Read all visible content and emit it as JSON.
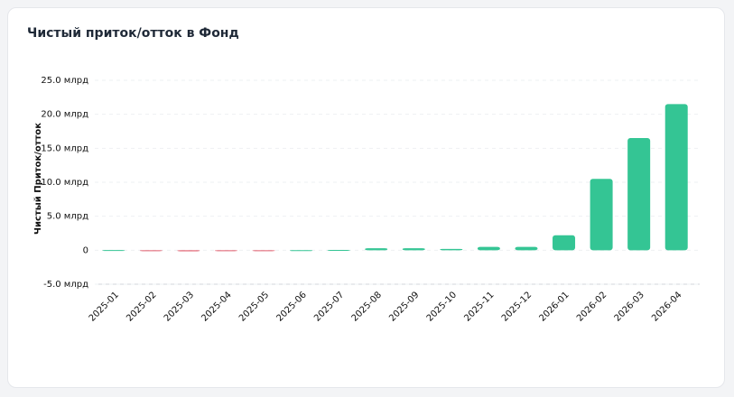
{
  "chart_data": {
    "type": "bar",
    "title": "Чистый приток/отток в Фонд",
    "y_label": "Чистый Приток/отток",
    "categories": [
      "2025-01",
      "2025-02",
      "2025-03",
      "2025-04",
      "2025-05",
      "2025-06",
      "2025-07",
      "2025-08",
      "2025-09",
      "2025-10",
      "2025-11",
      "2025-12",
      "2026-01",
      "2026-02",
      "2026-03",
      "2026-04"
    ],
    "values": [
      0.02,
      -0.1,
      -0.15,
      -0.05,
      -0.05,
      0.01,
      0.05,
      0.3,
      0.3,
      0.2,
      0.5,
      0.5,
      2.2,
      10.5,
      16.5,
      21.5
    ],
    "positive_color": "#34c594",
    "negative_color": "#e05a6a",
    "ylim": [
      -5,
      25
    ],
    "yticks": [
      {
        "value": -5,
        "label": "-5.0 млрд"
      },
      0,
      {
        "value": 5,
        "label": "5.0 млрд"
      },
      {
        "value": 10,
        "label": "10.0 млрд"
      },
      {
        "value": 15,
        "label": "15.0 млрд"
      },
      {
        "value": 20,
        "label": "20.0 млрд"
      },
      {
        "value": 25,
        "label": "25.0 млрд"
      }
    ],
    "grid": true
  }
}
